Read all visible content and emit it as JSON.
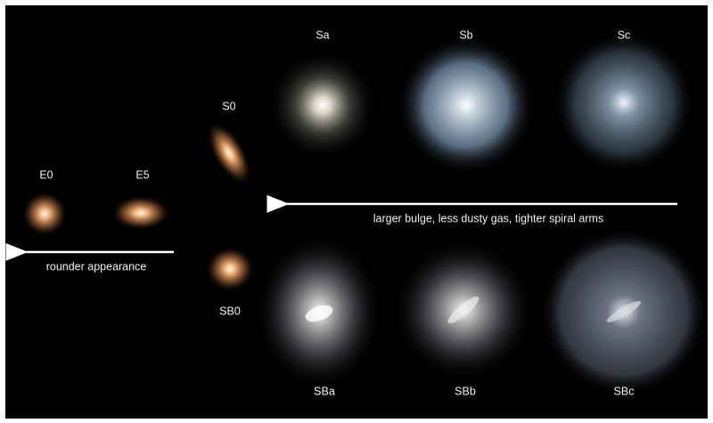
{
  "galaxies": [
    {
      "label": "E0"
    },
    {
      "label": "E5"
    },
    {
      "label": "S0"
    },
    {
      "label": "SB0"
    },
    {
      "label": "Sa"
    },
    {
      "label": "Sb"
    },
    {
      "label": "Sc"
    },
    {
      "label": "SBa"
    },
    {
      "label": "SBb"
    },
    {
      "label": "SBc"
    }
  ],
  "arrows": [
    {
      "label": "larger bulge, less dusty gas, tighter spiral arms"
    },
    {
      "label": "rounder appearance"
    }
  ]
}
